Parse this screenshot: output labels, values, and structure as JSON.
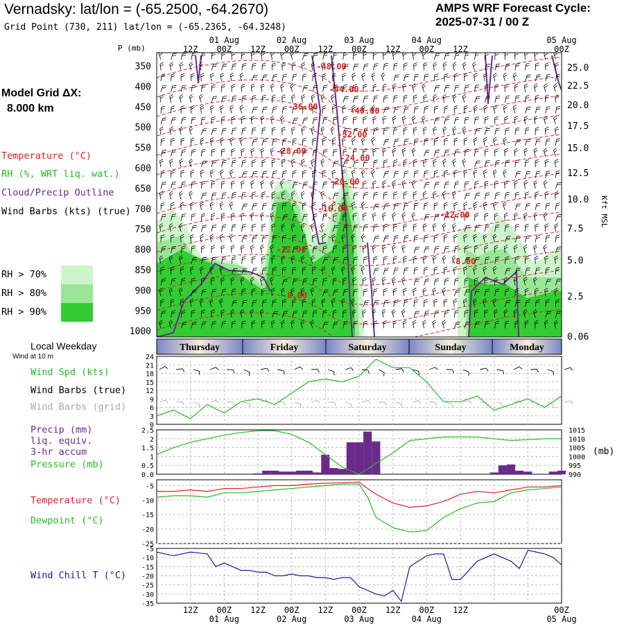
{
  "header": {
    "title": "Vernadsky:  lat/lon = (-65.2500, -64.2670)",
    "subtitle": "Grid Point (730, 211) lat/lon = (-65.2365, -64.3248)",
    "cycle_label": "AMPS WRF Forecast Cycle:",
    "cycle_value": "2025-07-31 / 00  Z"
  },
  "left_labels": {
    "grid_label": "Model Grid ΔX:",
    "grid_value": "8.000 km",
    "temperature": "Temperature (°C)",
    "rh": "RH (%, WRT liq. wat.)",
    "cloud": "Cloud/Precip Outline",
    "wind_barbs": "Wind Barbs (kts) (true)",
    "rh_legend": [
      "RH > 70%",
      "RH > 80%",
      "RH > 90%"
    ],
    "local_weekday": "Local Weekday",
    "wind_10m": "Wind at 10 m",
    "wind_spd": "Wind Spd (kts)",
    "wind_barbs_true": "Wind Barbs (true)",
    "wind_barbs_grid": "Wind Barbs (grid)",
    "precip_lines": [
      "Precip (mm)",
      "liq. equiv.",
      "3-hr accum"
    ],
    "pressure": "Pressure (mb)",
    "temperature2": "Temperature (°C)",
    "dewpoint": "Dewpoint (°C)",
    "wind_chill": "Wind Chill T (°C)",
    "pressure_unit": "(mb)",
    "kft_msl": "Kft MSL",
    "p_mb": "P (mb)"
  },
  "colors": {
    "temperature": "#e02020",
    "rh": "#22bb22",
    "cloud": "#6a2a8a",
    "wind_chill": "#1a1aa8",
    "rh70": "#ccf5cc",
    "rh80": "#99e699",
    "rh90": "#33cc33",
    "gray": "#aaaaaa"
  },
  "chart_data": [
    {
      "type": "heatmap",
      "name": "cross-section",
      "time_ticks": [
        "12Z",
        "00Z",
        "12Z",
        "00Z",
        "12Z",
        "00Z",
        "12Z",
        "00Z",
        "12Z",
        "00Z"
      ],
      "date_ticks": [
        "01 Aug",
        "02 Aug",
        "03 Aug",
        "04 Aug",
        "05 Aug"
      ],
      "pressure_ticks": [
        "350",
        "400",
        "450",
        "500",
        "550",
        "600",
        "650",
        "700",
        "750",
        "800",
        "850",
        "900",
        "950",
        "1000"
      ],
      "kft_ticks": [
        "25.0",
        "22.5",
        "20.0",
        "17.5",
        "15.0",
        "12.5",
        "10.0",
        "7.5",
        "5.0",
        "2.5",
        "0.06"
      ],
      "temperature_labels": [
        "-48.00",
        "-44.00",
        "-40.00",
        "-36.00",
        "-32.00",
        "-28.00",
        "-24.00",
        "-20.00",
        "-16.00",
        "-12.00",
        "-12.00",
        "-8.00",
        "-8.00"
      ],
      "weekdays": [
        "Thursday",
        "Friday",
        "Saturday",
        "Sunday",
        "Monday"
      ]
    },
    {
      "type": "line",
      "name": "wind-speed",
      "ylim": [
        0,
        24
      ],
      "yticks": [
        "24",
        "21",
        "18",
        "15",
        "12",
        "9",
        "6",
        "3",
        "0"
      ],
      "x_hours": [
        0,
        6,
        12,
        18,
        24,
        30,
        36,
        42,
        48,
        54,
        60,
        66,
        72,
        78,
        84,
        90,
        96,
        102,
        108,
        114,
        120,
        126,
        132,
        138,
        144
      ],
      "values": [
        3,
        5,
        2,
        7,
        4,
        8,
        9,
        7,
        11,
        15,
        16,
        15,
        17,
        23,
        20,
        20,
        15,
        8,
        8,
        10,
        5,
        7,
        9,
        6,
        10
      ]
    },
    {
      "type": "bar",
      "name": "precip-pressure",
      "ylim": [
        0,
        2.5
      ],
      "yticks": [
        "2.5",
        "2",
        "1.5",
        "1",
        "0.5",
        "0.0"
      ],
      "y2ticks": [
        "1015",
        "1010",
        "1005",
        "1000",
        "995",
        "990"
      ],
      "precip_bars": [
        {
          "h": 36,
          "v": 0.05
        },
        {
          "h": 39,
          "v": 0.2
        },
        {
          "h": 42,
          "v": 0.2
        },
        {
          "h": 45,
          "v": 0.15
        },
        {
          "h": 48,
          "v": 0.15
        },
        {
          "h": 51,
          "v": 0.2
        },
        {
          "h": 54,
          "v": 0.2
        },
        {
          "h": 57,
          "v": 0.1
        },
        {
          "h": 60,
          "v": 1.1
        },
        {
          "h": 63,
          "v": 0.35
        },
        {
          "h": 66,
          "v": 0.3
        },
        {
          "h": 69,
          "v": 1.8
        },
        {
          "h": 72,
          "v": 1.8
        },
        {
          "h": 75,
          "v": 2.4
        },
        {
          "h": 78,
          "v": 1.85
        },
        {
          "h": 120,
          "v": 0.1
        },
        {
          "h": 123,
          "v": 0.5
        },
        {
          "h": 126,
          "v": 0.55
        },
        {
          "h": 129,
          "v": 0.2
        },
        {
          "h": 132,
          "v": 0.15
        },
        {
          "h": 141,
          "v": 0.15
        },
        {
          "h": 144,
          "v": 0.2
        }
      ],
      "pressure_x": [
        0,
        6,
        12,
        18,
        24,
        30,
        36,
        42,
        48,
        54,
        60,
        66,
        72,
        78,
        84,
        90,
        96,
        102,
        108,
        114,
        120,
        126,
        132,
        138,
        144
      ],
      "pressure_values": [
        1001,
        1005,
        1008,
        1010,
        1012,
        1013.5,
        1014.5,
        1014.5,
        1012.5,
        1008,
        1001,
        994,
        990,
        996,
        1002,
        1009,
        1010,
        1011,
        1011,
        1011,
        1010,
        1009,
        1009.5,
        1010,
        1010
      ]
    },
    {
      "type": "line",
      "name": "temperature-dewpoint",
      "ylim": [
        -25,
        -3
      ],
      "yticks": [
        "-5",
        "-10",
        "-15",
        "-20",
        "-25"
      ],
      "x_hours": [
        0,
        6,
        12,
        18,
        24,
        30,
        36,
        42,
        48,
        54,
        60,
        66,
        72,
        75,
        78,
        84,
        90,
        96,
        102,
        108,
        114,
        120,
        126,
        132,
        138,
        144
      ],
      "temperature": [
        -7,
        -7,
        -6.5,
        -7,
        -6,
        -6,
        -5.5,
        -5,
        -5,
        -4.5,
        -4.2,
        -4,
        -3.8,
        -6,
        -8,
        -11,
        -12.5,
        -12,
        -10.5,
        -8,
        -7,
        -7.5,
        -6.5,
        -5.5,
        -5.5,
        -5
      ],
      "dewpoint": [
        -9,
        -8.5,
        -8.5,
        -9,
        -7.5,
        -7.5,
        -7,
        -6.5,
        -6,
        -5.5,
        -5,
        -4.5,
        -4.5,
        -9,
        -16,
        -19.5,
        -21,
        -20.5,
        -16,
        -13,
        -11,
        -10.5,
        -7.5,
        -6.5,
        -6,
        -5.5
      ]
    },
    {
      "type": "line",
      "name": "wind-chill",
      "ylim": [
        -35,
        -5
      ],
      "yticks": [
        "-5",
        "-10",
        "-15",
        "-20",
        "-25",
        "-30",
        "-35"
      ],
      "x_hours": [
        0,
        3,
        6,
        9,
        12,
        15,
        18,
        21,
        24,
        27,
        30,
        33,
        36,
        39,
        42,
        45,
        48,
        51,
        54,
        57,
        60,
        63,
        66,
        69,
        72,
        75,
        78,
        81,
        84,
        87,
        90,
        93,
        96,
        99,
        102,
        105,
        108,
        111,
        114,
        117,
        120,
        123,
        126,
        129,
        132,
        135,
        138,
        141,
        144
      ],
      "values": [
        -7,
        -8,
        -9,
        -8,
        -7,
        -7.5,
        -8,
        -15,
        -13,
        -15,
        -17,
        -17,
        -18,
        -18,
        -20,
        -20,
        -19,
        -20,
        -20,
        -21,
        -21,
        -22,
        -21,
        -21,
        -26,
        -28,
        -30,
        -31,
        -28,
        -34,
        -15,
        -12,
        -9,
        -8,
        -8,
        -22,
        -22,
        -17,
        -12,
        -10,
        -8,
        -10,
        -12,
        -16,
        -6,
        -7,
        -8,
        -10,
        -14
      ]
    }
  ]
}
